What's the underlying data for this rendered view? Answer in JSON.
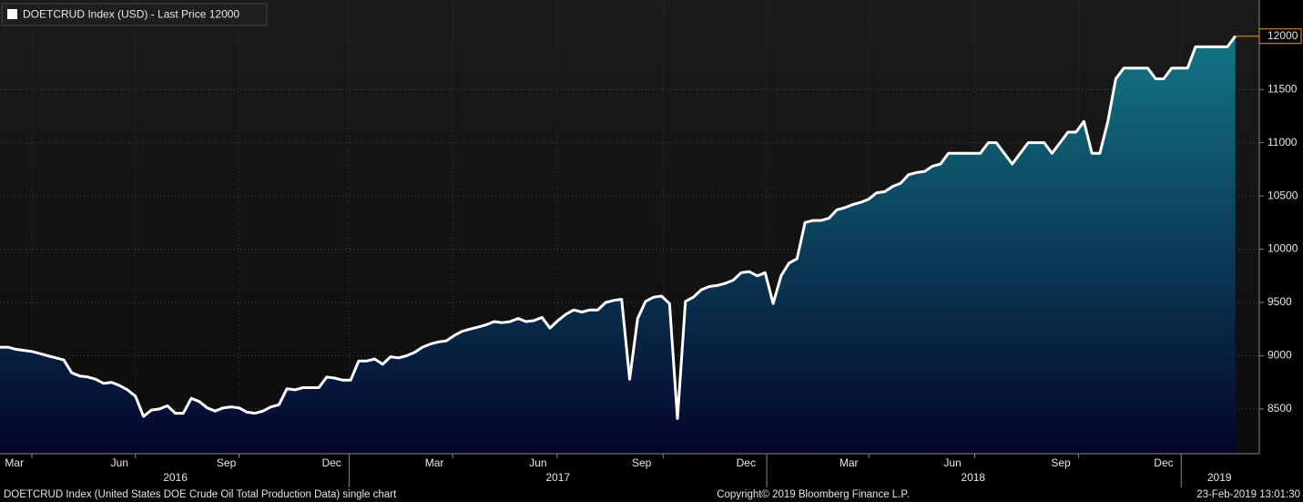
{
  "chart_data": {
    "type": "area",
    "legend_label": "DOETCRUD Index (USD) - Last Price",
    "last_price": 12000,
    "values": [
      9080,
      9080,
      9060,
      9050,
      9040,
      9020,
      9000,
      8980,
      8960,
      8840,
      8810,
      8800,
      8780,
      8740,
      8750,
      8720,
      8680,
      8620,
      8430,
      8490,
      8500,
      8530,
      8460,
      8460,
      8600,
      8570,
      8510,
      8480,
      8510,
      8520,
      8510,
      8470,
      8460,
      8480,
      8520,
      8540,
      8690,
      8680,
      8700,
      8700,
      8700,
      8800,
      8790,
      8770,
      8770,
      8950,
      8950,
      8970,
      8920,
      8990,
      8980,
      9000,
      9030,
      9080,
      9110,
      9130,
      9140,
      9190,
      9230,
      9250,
      9270,
      9290,
      9320,
      9310,
      9320,
      9350,
      9320,
      9330,
      9360,
      9260,
      9330,
      9390,
      9430,
      9410,
      9430,
      9430,
      9500,
      9520,
      9530,
      8780,
      9350,
      9510,
      9550,
      9560,
      9490,
      8410,
      9510,
      9550,
      9620,
      9650,
      9660,
      9680,
      9710,
      9780,
      9790,
      9750,
      9780,
      9490,
      9750,
      9870,
      9910,
      10250,
      10270,
      10270,
      10290,
      10370,
      10390,
      10420,
      10440,
      10470,
      10530,
      10540,
      10590,
      10620,
      10700,
      10720,
      10730,
      10780,
      10800,
      10900,
      10900,
      10900,
      10900,
      10900,
      11000,
      11000,
      10900,
      10800,
      10900,
      11000,
      11000,
      11000,
      10900,
      11000,
      11100,
      11100,
      11200,
      10900,
      10900,
      11200,
      11600,
      11700,
      11700,
      11700,
      11700,
      11600,
      11600,
      11700,
      11700,
      11700,
      11900,
      11900,
      11900,
      11900,
      11900,
      12000
    ],
    "line_color": "#ffffff",
    "area_top_color": "#137684",
    "area_bottom_color": "#04042c",
    "xlim": [
      0,
      158
    ],
    "ylim": [
      8080,
      12340
    ],
    "yticks": [
      8500,
      9000,
      9500,
      10000,
      10500,
      11000,
      11500
    ],
    "xticks": [
      4,
      17,
      30,
      56.8,
      69.9,
      83.2,
      109,
      122.3,
      135.3
    ],
    "year_boundaries": [
      43.8,
      96.2,
      148.2
    ],
    "month_labels": [
      {
        "value": 1.8,
        "label": "Mar"
      },
      {
        "value": 15,
        "label": "Jun"
      },
      {
        "value": 28.4,
        "label": "Sep"
      },
      {
        "value": 41.6,
        "label": "Dec"
      },
      {
        "value": 54.5,
        "label": "Mar"
      },
      {
        "value": 67.5,
        "label": "Jun"
      },
      {
        "value": 80.5,
        "label": "Sep"
      },
      {
        "value": 93.6,
        "label": "Dec"
      },
      {
        "value": 106.5,
        "label": "Mar"
      },
      {
        "value": 119.5,
        "label": "Jun"
      },
      {
        "value": 133.1,
        "label": "Sep"
      },
      {
        "value": 146,
        "label": "Dec"
      }
    ],
    "year_labels": [
      {
        "value": 22,
        "label": "2016"
      },
      {
        "value": 70,
        "label": "2017"
      },
      {
        "value": 122.1,
        "label": "2018"
      },
      {
        "value": 153,
        "label": "2019"
      }
    ],
    "grid": true,
    "footer_left": "DOETCRUD Index (United States DOE Crude Oil Total Production Data) single chart",
    "footer_center": "Copyright© 2019 Bloomberg Finance L.P.",
    "footer_right": "23-Feb-2019 13:01:30"
  }
}
